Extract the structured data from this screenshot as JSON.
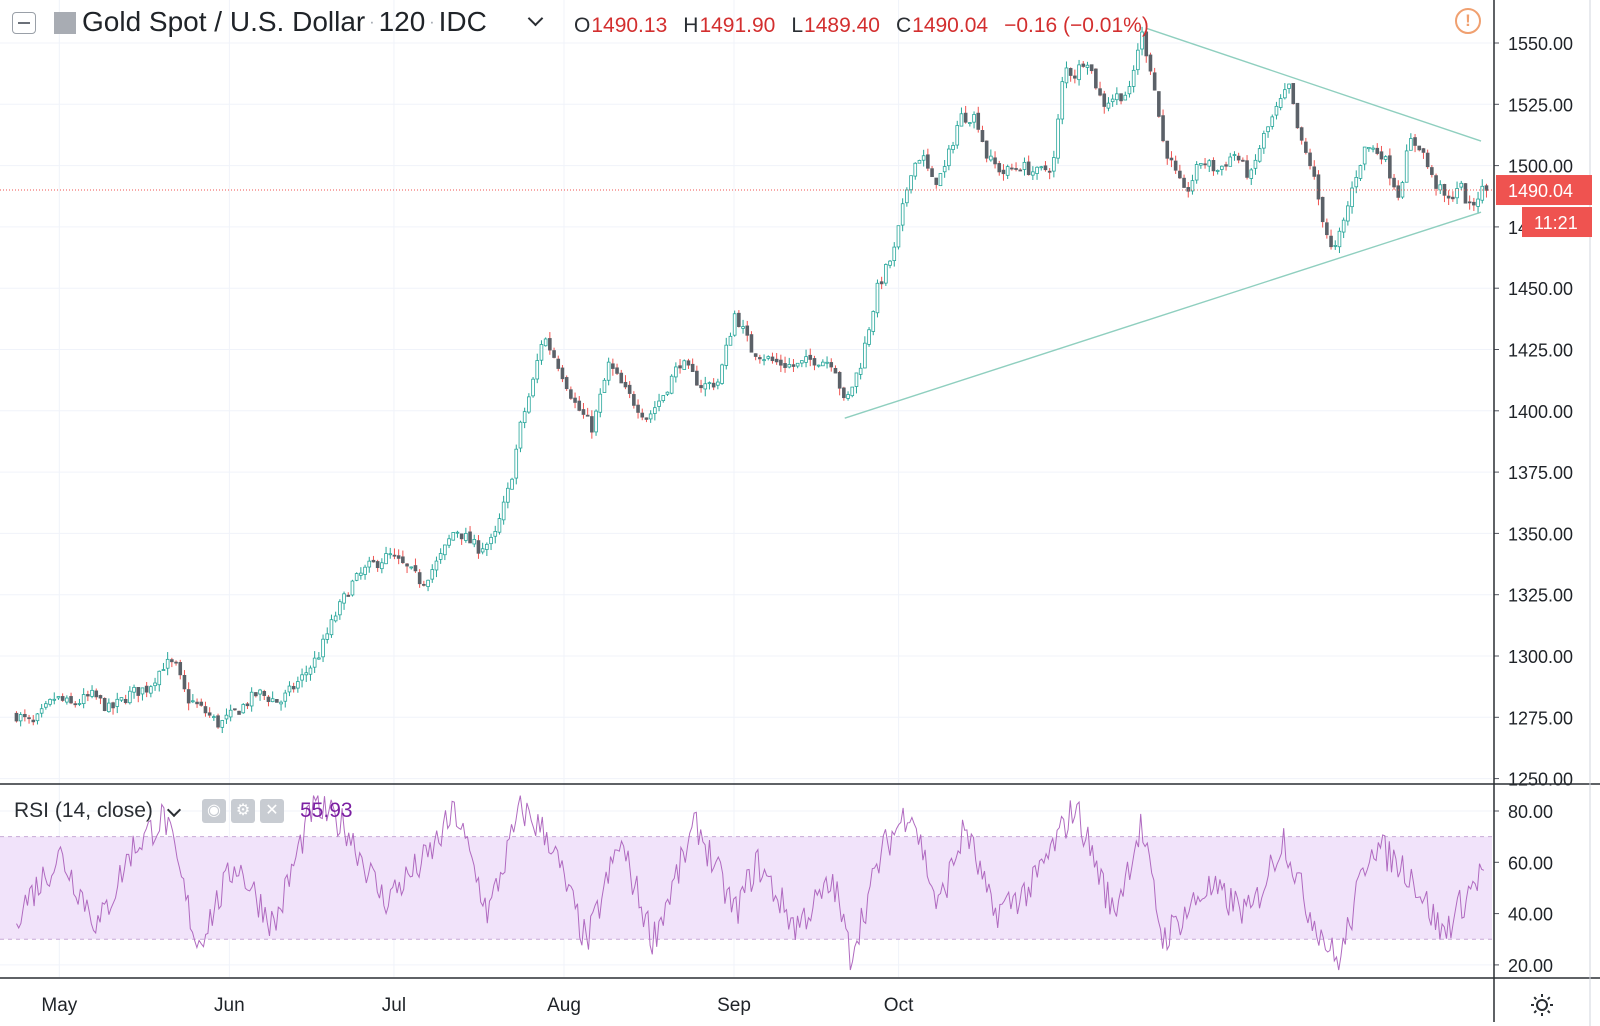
{
  "header": {
    "symbol": "Gold Spot / U.S. Dollar",
    "interval": "120",
    "exchange": "IDC",
    "open_key": "O",
    "open": "1490.13",
    "high_key": "H",
    "high": "1491.90",
    "low_key": "L",
    "low": "1489.40",
    "close_key": "C",
    "close": "1490.04",
    "change": "−0.16 (−0.01%)"
  },
  "price_axis": {
    "last_price": "1490.04",
    "countdown": "11:21"
  },
  "rsi": {
    "label": "RSI (14, close)",
    "value": "55.93"
  },
  "colors": {
    "up": "#26a69a",
    "down": "#ef5350",
    "candle_body": "#5b6168",
    "price_line": "#ef5350",
    "rsi_line": "#b06ac0",
    "rsi_band": "#f1e3fa",
    "trendline": "#8fcfbf"
  },
  "chart_data": [
    {
      "type": "candlestick",
      "title": "Gold Spot / U.S. Dollar",
      "x_ticks": [
        "May",
        "Jun",
        "Jul",
        "Aug",
        "Sep",
        "Oct"
      ],
      "y_ticks": [
        1250,
        1275,
        1300,
        1325,
        1350,
        1375,
        1400,
        1425,
        1450,
        1475,
        1500,
        1525,
        1550
      ],
      "ylim": [
        1250,
        1563
      ],
      "grid": true,
      "series": [
        {
          "close_path": [
            [
              "2019-04-23",
              1276
            ],
            [
              "2019-04-26",
              1272
            ],
            [
              "2019-04-30",
              1283
            ],
            [
              "2019-05-03",
              1280
            ],
            [
              "2019-05-07",
              1284
            ],
            [
              "2019-05-10",
              1278
            ],
            [
              "2019-05-14",
              1285
            ],
            [
              "2019-05-17",
              1287
            ],
            [
              "2019-05-20",
              1297
            ],
            [
              "2019-05-22",
              1296
            ],
            [
              "2019-05-24",
              1283
            ],
            [
              "2019-05-27",
              1278
            ],
            [
              "2019-05-30",
              1272
            ],
            [
              "2019-06-03",
              1279
            ],
            [
              "2019-06-06",
              1285
            ],
            [
              "2019-06-10",
              1281
            ],
            [
              "2019-06-14",
              1291
            ],
            [
              "2019-06-17",
              1300
            ],
            [
              "2019-06-20",
              1316
            ],
            [
              "2019-06-23",
              1329
            ],
            [
              "2019-06-26",
              1336
            ],
            [
              "2019-06-30",
              1341
            ],
            [
              "2019-07-03",
              1336
            ],
            [
              "2019-07-06",
              1330
            ],
            [
              "2019-07-09",
              1339
            ],
            [
              "2019-07-12",
              1352
            ],
            [
              "2019-07-16",
              1344
            ],
            [
              "2019-07-19",
              1347
            ],
            [
              "2019-07-22",
              1370
            ],
            [
              "2019-07-24",
              1395
            ],
            [
              "2019-07-26",
              1410
            ],
            [
              "2019-07-28",
              1431
            ],
            [
              "2019-07-31",
              1418
            ],
            [
              "2019-08-03",
              1402
            ],
            [
              "2019-08-06",
              1393
            ],
            [
              "2019-08-09",
              1419
            ],
            [
              "2019-08-12",
              1408
            ],
            [
              "2019-08-16",
              1397
            ],
            [
              "2019-08-19",
              1407
            ],
            [
              "2019-08-22",
              1420
            ],
            [
              "2019-08-26",
              1410
            ],
            [
              "2019-08-29",
              1412
            ],
            [
              "2019-09-01",
              1440
            ],
            [
              "2019-09-04",
              1425
            ],
            [
              "2019-09-08",
              1420
            ],
            [
              "2019-09-12",
              1418
            ],
            [
              "2019-09-15",
              1421
            ],
            [
              "2019-09-19",
              1420
            ],
            [
              "2019-09-21",
              1402
            ],
            [
              "2019-09-24",
              1420
            ],
            [
              "2019-09-27",
              1450
            ],
            [
              "2019-09-30",
              1465
            ],
            [
              "2019-10-03",
              1498
            ],
            [
              "2019-10-05",
              1505
            ],
            [
              "2019-10-07",
              1493
            ],
            [
              "2019-10-09",
              1497
            ],
            [
              "2019-10-12",
              1520
            ],
            [
              "2019-10-15",
              1520
            ],
            [
              "2019-10-17",
              1503
            ],
            [
              "2019-10-20",
              1497
            ],
            [
              "2019-10-23",
              1500
            ],
            [
              "2019-10-26",
              1497
            ],
            [
              "2019-10-29",
              1500
            ],
            [
              "2019-10-31",
              1540
            ],
            [
              "2019-11-02",
              1537
            ],
            [
              "2019-11-04",
              1545
            ],
            [
              "2019-11-07",
              1525
            ],
            [
              "2019-11-09",
              1528
            ],
            [
              "2019-11-12",
              1530
            ],
            [
              "2019-11-14",
              1555
            ],
            [
              "2019-11-16",
              1538
            ],
            [
              "2019-11-18",
              1510
            ],
            [
              "2019-11-20",
              1498
            ],
            [
              "2019-11-22",
              1488
            ],
            [
              "2019-11-25",
              1502
            ],
            [
              "2019-11-28",
              1498
            ],
            [
              "2019-12-01",
              1505
            ],
            [
              "2019-12-04",
              1495
            ],
            [
              "2019-12-06",
              1510
            ],
            [
              "2019-12-09",
              1524
            ],
            [
              "2019-12-11",
              1532
            ],
            [
              "2019-12-13",
              1510
            ],
            [
              "2019-12-15",
              1500
            ],
            [
              "2019-12-17",
              1480
            ],
            [
              "2019-12-19",
              1463
            ],
            [
              "2019-12-21",
              1477
            ],
            [
              "2019-12-23",
              1495
            ],
            [
              "2019-12-25",
              1508
            ],
            [
              "2019-12-28",
              1505
            ],
            [
              "2019-12-31",
              1488
            ],
            [
              "2020-01-02",
              1510
            ],
            [
              "2020-01-04",
              1508
            ],
            [
              "2020-01-06",
              1495
            ],
            [
              "2020-01-09",
              1485
            ],
            [
              "2020-01-11",
              1493
            ],
            [
              "2020-01-13",
              1482
            ],
            [
              "2020-01-15",
              1490
            ]
          ]
        }
      ],
      "annotations": [
        {
          "type": "trendline",
          "from": [
            "2019-09-21",
            1397
          ],
          "to": [
            "2020-01-15",
            1481
          ]
        },
        {
          "type": "trendline",
          "from": [
            "2019-11-15",
            1556
          ],
          "to": [
            "2020-01-15",
            1510
          ]
        }
      ]
    },
    {
      "type": "line",
      "title": "RSI (14, close)",
      "y_ticks": [
        20,
        40,
        60,
        80
      ],
      "ylim": [
        15,
        88
      ],
      "band": [
        30,
        70
      ],
      "series": [
        {
          "name": "RSI",
          "points": [
            [
              "2019-04-23",
              40
            ],
            [
              "2019-05-01",
              63
            ],
            [
              "2019-05-08",
              35
            ],
            [
              "2019-05-14",
              65
            ],
            [
              "2019-05-20",
              78
            ],
            [
              "2019-05-26",
              28
            ],
            [
              "2019-06-02",
              60
            ],
            [
              "2019-06-09",
              35
            ],
            [
              "2019-06-16",
              82
            ],
            [
              "2019-06-22",
              74
            ],
            [
              "2019-06-29",
              45
            ],
            [
              "2019-07-07",
              62
            ],
            [
              "2019-07-12",
              80
            ],
            [
              "2019-07-18",
              40
            ],
            [
              "2019-07-24",
              81
            ],
            [
              "2019-07-29",
              70
            ],
            [
              "2019-08-05",
              28
            ],
            [
              "2019-08-11",
              68
            ],
            [
              "2019-08-17",
              30
            ],
            [
              "2019-08-25",
              75
            ],
            [
              "2019-09-01",
              40
            ],
            [
              "2019-09-05",
              60
            ],
            [
              "2019-09-12",
              35
            ],
            [
              "2019-09-19",
              52
            ],
            [
              "2019-09-22",
              24
            ],
            [
              "2019-09-28",
              65
            ],
            [
              "2019-10-03",
              82
            ],
            [
              "2019-10-08",
              42
            ],
            [
              "2019-10-13",
              74
            ],
            [
              "2019-10-18",
              40
            ],
            [
              "2019-10-25",
              50
            ],
            [
              "2019-11-02",
              82
            ],
            [
              "2019-11-09",
              40
            ],
            [
              "2019-11-14",
              74
            ],
            [
              "2019-11-18",
              30
            ],
            [
              "2019-11-26",
              50
            ],
            [
              "2019-12-04",
              40
            ],
            [
              "2019-12-10",
              70
            ],
            [
              "2019-12-14",
              44
            ],
            [
              "2019-12-20",
              20
            ],
            [
              "2019-12-26",
              68
            ],
            [
              "2020-01-02",
              56
            ],
            [
              "2020-01-08",
              32
            ],
            [
              "2020-01-15",
              55.93
            ]
          ]
        }
      ]
    }
  ]
}
